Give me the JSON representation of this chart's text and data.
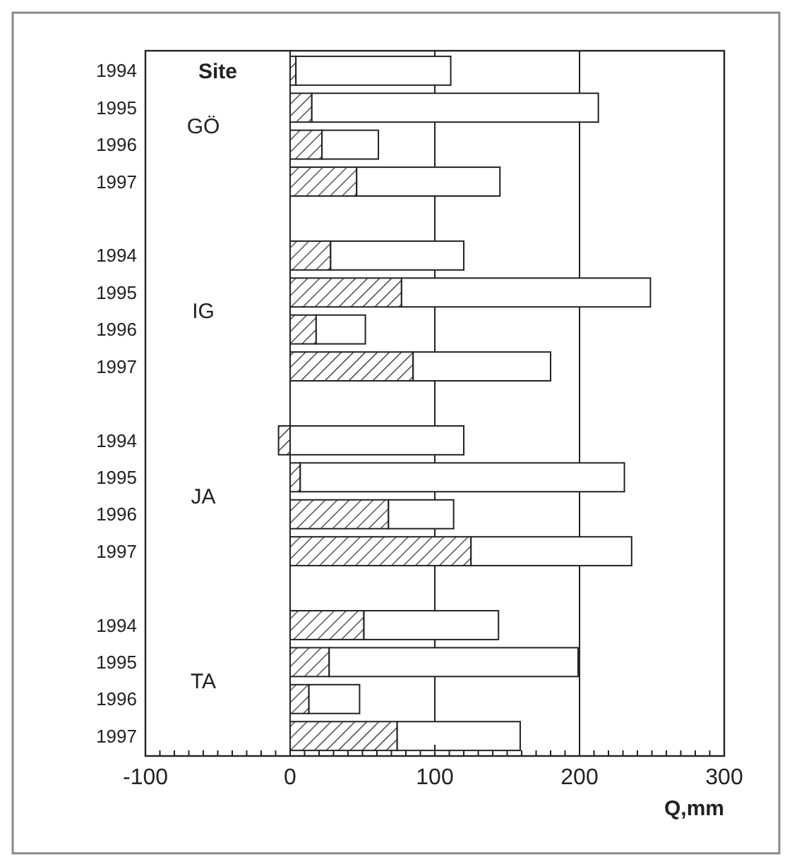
{
  "chart_data": {
    "type": "bar",
    "orientation": "horizontal",
    "stacked": true,
    "xlabel": "Q,mm",
    "categories": [
      "1994",
      "1995",
      "1996",
      "1997",
      null,
      "1994",
      "1995",
      "1996",
      "1997",
      null,
      "1994",
      "1995",
      "1996",
      "1997",
      null,
      "1994",
      "1995",
      "1996",
      "1997"
    ],
    "series": [
      {
        "color": "#222222",
        "values": [
          4,
          15,
          22,
          46,
          null,
          28,
          77,
          18,
          85,
          null,
          -8,
          7,
          68,
          125,
          null,
          51,
          27,
          13,
          74
        ]
      },
      {
        "color": "#ffffff",
        "values": [
          107,
          198,
          39,
          99,
          null,
          92,
          172,
          34,
          95,
          null,
          120,
          224,
          45,
          111,
          null,
          93,
          172,
          35,
          85
        ]
      }
    ],
    "xlim": [
      -100,
      300
    ],
    "xticks": [
      -100,
      {
        "value": -90,
        "label": null
      },
      {
        "value": -80,
        "label": null
      },
      {
        "value": -70,
        "label": null
      },
      {
        "value": -60,
        "label": null
      },
      {
        "value": -50,
        "label": null
      },
      {
        "value": -40,
        "label": null
      },
      {
        "value": -30,
        "label": null
      },
      {
        "value": -20,
        "label": null
      },
      {
        "value": -10,
        "label": null
      },
      0,
      {
        "value": 10,
        "label": null
      },
      {
        "value": 20,
        "label": null
      },
      {
        "value": 30,
        "label": null
      },
      {
        "value": 40,
        "label": null
      },
      {
        "value": 50,
        "label": null
      },
      {
        "value": 60,
        "label": null
      },
      {
        "value": 70,
        "label": null
      },
      {
        "value": 80,
        "label": null
      },
      {
        "value": 90,
        "label": null
      },
      100,
      {
        "value": 110,
        "label": null
      },
      {
        "value": 120,
        "label": null
      },
      {
        "value": 130,
        "label": null
      },
      {
        "value": 140,
        "label": null
      },
      {
        "value": 150,
        "label": null
      },
      {
        "value": 160,
        "label": null
      },
      {
        "value": 170,
        "label": null
      },
      {
        "value": 180,
        "label": null
      },
      {
        "value": 190,
        "label": null
      },
      200,
      {
        "value": 210,
        "label": null
      },
      {
        "value": 220,
        "label": null
      },
      {
        "value": 230,
        "label": null
      },
      {
        "value": 240,
        "label": null
      },
      {
        "value": 250,
        "label": null
      },
      {
        "value": 260,
        "label": null
      },
      {
        "value": 270,
        "label": null
      },
      {
        "value": 280,
        "label": null
      },
      {
        "value": 290,
        "label": null
      },
      300
    ],
    "grid": "x",
    "annotations": [
      "Site",
      "GÖ",
      "IG",
      "JA",
      "TA"
    ]
  }
}
